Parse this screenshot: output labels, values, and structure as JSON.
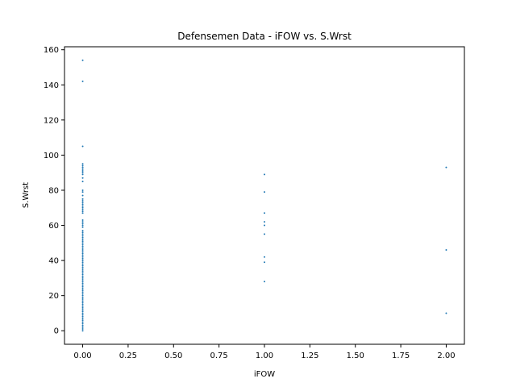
{
  "chart_data": {
    "type": "scatter",
    "title": "Defensemen Data - iFOW vs. S.Wrst",
    "xlabel": "iFOW",
    "ylabel": "S.Wrst",
    "xlim": [
      -0.1,
      2.1
    ],
    "ylim": [
      -7.7,
      161.7
    ],
    "x_ticks": [
      0.0,
      0.25,
      0.5,
      0.75,
      1.0,
      1.25,
      1.5,
      1.75,
      2.0
    ],
    "x_tick_labels": [
      "0.00",
      "0.25",
      "0.50",
      "0.75",
      "1.00",
      "1.25",
      "1.50",
      "1.75",
      "2.00"
    ],
    "y_ticks": [
      0,
      20,
      40,
      60,
      80,
      100,
      120,
      140,
      160
    ],
    "y_tick_labels": [
      "0",
      "20",
      "40",
      "60",
      "80",
      "100",
      "120",
      "140",
      "160"
    ],
    "grid": false,
    "legend": "none",
    "marker_color": "#1f77b4",
    "points": [
      [
        0,
        154
      ],
      [
        0,
        142
      ],
      [
        0,
        105
      ],
      [
        0,
        95
      ],
      [
        0,
        94
      ],
      [
        0,
        93
      ],
      [
        0,
        92
      ],
      [
        0,
        91
      ],
      [
        0,
        90
      ],
      [
        0,
        89
      ],
      [
        0,
        87
      ],
      [
        0,
        85
      ],
      [
        0,
        80
      ],
      [
        0,
        79
      ],
      [
        0,
        77
      ],
      [
        0,
        75
      ],
      [
        0,
        74
      ],
      [
        0,
        73
      ],
      [
        0,
        72
      ],
      [
        0,
        71
      ],
      [
        0,
        70
      ],
      [
        0,
        69
      ],
      [
        0,
        68
      ],
      [
        0,
        67
      ],
      [
        0,
        63
      ],
      [
        0,
        62
      ],
      [
        0,
        61
      ],
      [
        0,
        60
      ],
      [
        0,
        59
      ],
      [
        0,
        57
      ],
      [
        0,
        56
      ],
      [
        0,
        55
      ],
      [
        0,
        54
      ],
      [
        0,
        53
      ],
      [
        0,
        52
      ],
      [
        0,
        51
      ],
      [
        0,
        50
      ],
      [
        0,
        49
      ],
      [
        0,
        48
      ],
      [
        0,
        47
      ],
      [
        0,
        46
      ],
      [
        0,
        45
      ],
      [
        0,
        44
      ],
      [
        0,
        43
      ],
      [
        0,
        42
      ],
      [
        0,
        41
      ],
      [
        0,
        40
      ],
      [
        0,
        39
      ],
      [
        0,
        38
      ],
      [
        0,
        37
      ],
      [
        0,
        36
      ],
      [
        0,
        35
      ],
      [
        0,
        34
      ],
      [
        0,
        33
      ],
      [
        0,
        32
      ],
      [
        0,
        31
      ],
      [
        0,
        30
      ],
      [
        0,
        29
      ],
      [
        0,
        28
      ],
      [
        0,
        27
      ],
      [
        0,
        26
      ],
      [
        0,
        25
      ],
      [
        0,
        24
      ],
      [
        0,
        23
      ],
      [
        0,
        22
      ],
      [
        0,
        21
      ],
      [
        0,
        20
      ],
      [
        0,
        19
      ],
      [
        0,
        18
      ],
      [
        0,
        17
      ],
      [
        0,
        16
      ],
      [
        0,
        15
      ],
      [
        0,
        14
      ],
      [
        0,
        13
      ],
      [
        0,
        12
      ],
      [
        0,
        11
      ],
      [
        0,
        10
      ],
      [
        0,
        9
      ],
      [
        0,
        8
      ],
      [
        0,
        7
      ],
      [
        0,
        6
      ],
      [
        0,
        5
      ],
      [
        0,
        4
      ],
      [
        0,
        3
      ],
      [
        0,
        2
      ],
      [
        0,
        1
      ],
      [
        0,
        0
      ],
      [
        1,
        89
      ],
      [
        1,
        79
      ],
      [
        1,
        67
      ],
      [
        1,
        62
      ],
      [
        1,
        60
      ],
      [
        1,
        55
      ],
      [
        1,
        42
      ],
      [
        1,
        39
      ],
      [
        1,
        28
      ],
      [
        2,
        93
      ],
      [
        2,
        46
      ],
      [
        2,
        10
      ]
    ]
  }
}
